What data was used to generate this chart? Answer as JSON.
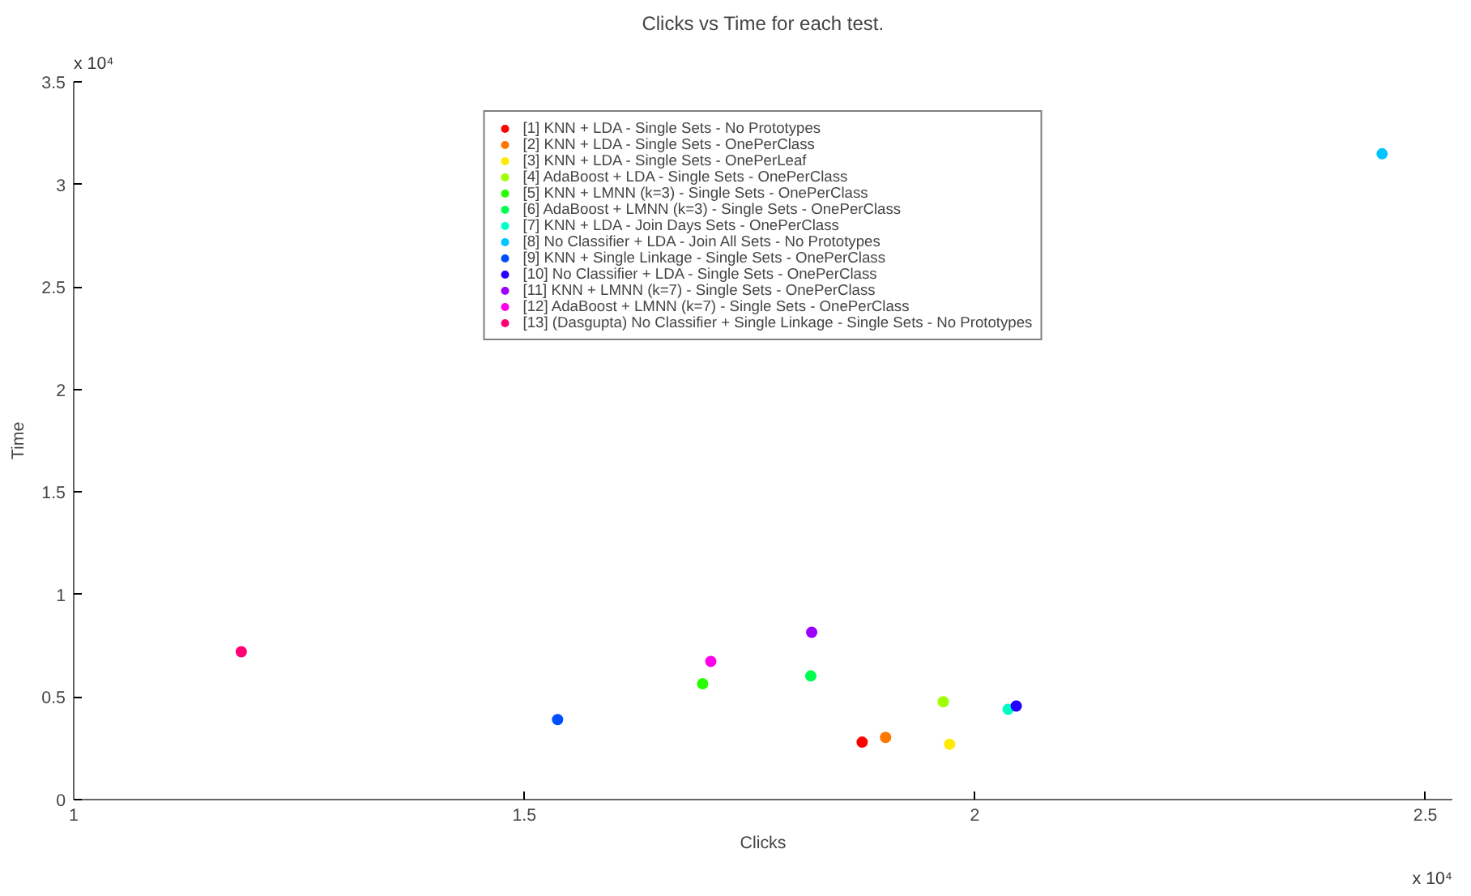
{
  "chart_data": {
    "type": "scatter",
    "title": "Clicks vs Time for each test.",
    "xlabel": "Clicks",
    "ylabel": "Time",
    "annotations": [
      "x 10⁴",
      "x 10⁴"
    ],
    "xlim": [
      1,
      2.53
    ],
    "ylim": [
      0,
      3.5
    ],
    "xticks": [
      1,
      1.5,
      2,
      2.5
    ],
    "yticks": [
      0,
      0.5,
      1,
      1.5,
      2,
      2.5,
      3,
      3.5
    ],
    "grid": false,
    "legend": "top",
    "marker": "circle",
    "series": [
      {
        "name": "[1] KNN + LDA - Single Sets - No Prototypes",
        "color": "#ff0000",
        "x": [
          1.875
        ],
        "values": [
          0.28
        ]
      },
      {
        "name": "[2] KNN + LDA - Single Sets - OnePerClass",
        "color": "#ff7600",
        "x": [
          1.901
        ],
        "values": [
          0.303
        ]
      },
      {
        "name": "[3] KNN + LDA - Single Sets - OnePerLeaf",
        "color": "#ffeb00",
        "x": [
          1.972
        ],
        "values": [
          0.27
        ]
      },
      {
        "name": "[4] AdaBoost + LDA - Single Sets - OnePerClass",
        "color": "#9dff00",
        "x": [
          1.965
        ],
        "values": [
          0.477
        ]
      },
      {
        "name": "[5] KNN + LMNN (k=3) - Single Sets - OnePerClass",
        "color": "#27ff00",
        "x": [
          1.698
        ],
        "values": [
          0.565
        ]
      },
      {
        "name": "[6] AdaBoost + LMNN (k=3) - Single Sets - OnePerClass",
        "color": "#00ff4e",
        "x": [
          1.818
        ],
        "values": [
          0.603
        ]
      },
      {
        "name": "[7] KNN + LDA - Join Days Sets - OnePerClass",
        "color": "#00ffc4",
        "x": [
          2.037
        ],
        "values": [
          0.44
        ]
      },
      {
        "name": "[8] No Classifier + LDA - Join All Sets - No Prototypes",
        "color": "#00c4ff",
        "x": [
          2.452
        ],
        "values": [
          3.149
        ]
      },
      {
        "name": "[9] KNN + Single Linkage - Single Sets - OnePerClass",
        "color": "#004eff",
        "x": [
          1.537
        ],
        "values": [
          0.39
        ]
      },
      {
        "name": "[10] No Classifier + LDA - Single Sets - OnePerClass",
        "color": "#2700ff",
        "x": [
          2.046
        ],
        "values": [
          0.456
        ]
      },
      {
        "name": "[11] KNN + LMNN (k=7) - Single Sets - OnePerClass",
        "color": "#9d00ff",
        "x": [
          1.819
        ],
        "values": [
          0.816
        ]
      },
      {
        "name": "[12] AdaBoost + LMNN (k=7) - Single Sets - OnePerClass",
        "color": "#ff00eb",
        "x": [
          1.707
        ],
        "values": [
          0.674
        ]
      },
      {
        "name": "[13] (Dasgupta) No Classifier + Single Linkage - Single Sets - No Prototypes",
        "color": "#ff0076",
        "x": [
          1.186
        ],
        "values": [
          0.721
        ]
      }
    ]
  }
}
